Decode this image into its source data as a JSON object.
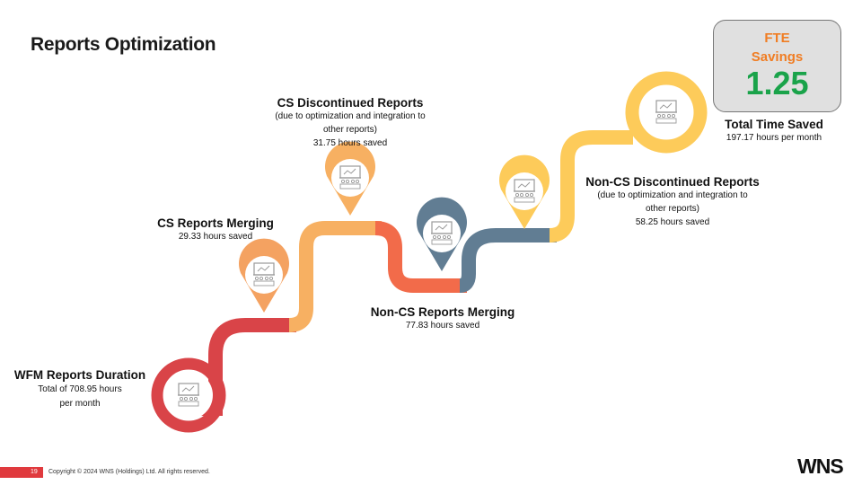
{
  "title": "Reports Optimization",
  "fte": {
    "line1": "FTE",
    "line2": "Savings",
    "value": "1.25"
  },
  "total": {
    "title": "Total Time Saved",
    "detail": "197.17 hours per month"
  },
  "milestones": [
    {
      "name": "WFM Reports Duration",
      "line1": "Total of 708.95 hours",
      "line2": "per month",
      "color": "#d94448"
    },
    {
      "name": "CS Reports Merging",
      "detail": "29.33 hours saved",
      "color": "#f4a261"
    },
    {
      "name": "CS Discontinued Reports",
      "sub1": "(due to optimization  and integration to",
      "sub2": "other reports)",
      "detail": "31.75 hours saved",
      "color": "#f7b062"
    },
    {
      "name": "Non-CS Reports Merging",
      "detail": "77.83 hours saved",
      "color": "#617d93"
    },
    {
      "name": "Non-CS Discontinued Reports",
      "sub1": "(due to optimization  and integration to",
      "sub2": "other reports)",
      "detail": "58.25 hours saved",
      "color": "#fdcb5a"
    }
  ],
  "footer": {
    "page": "19",
    "copyright": "Copyright © 2024 WNS (Holdings) Ltd. All rights reserved.",
    "logo": "WNS"
  },
  "icon": "presentation-board-icon",
  "colors": {
    "red": "#d94448",
    "orange_light": "#f4a261",
    "coral": "#f26b4a",
    "slate": "#617d93",
    "yellow": "#fdcb5a",
    "green": "#1aa34a",
    "accent_orange": "#f07d23"
  }
}
